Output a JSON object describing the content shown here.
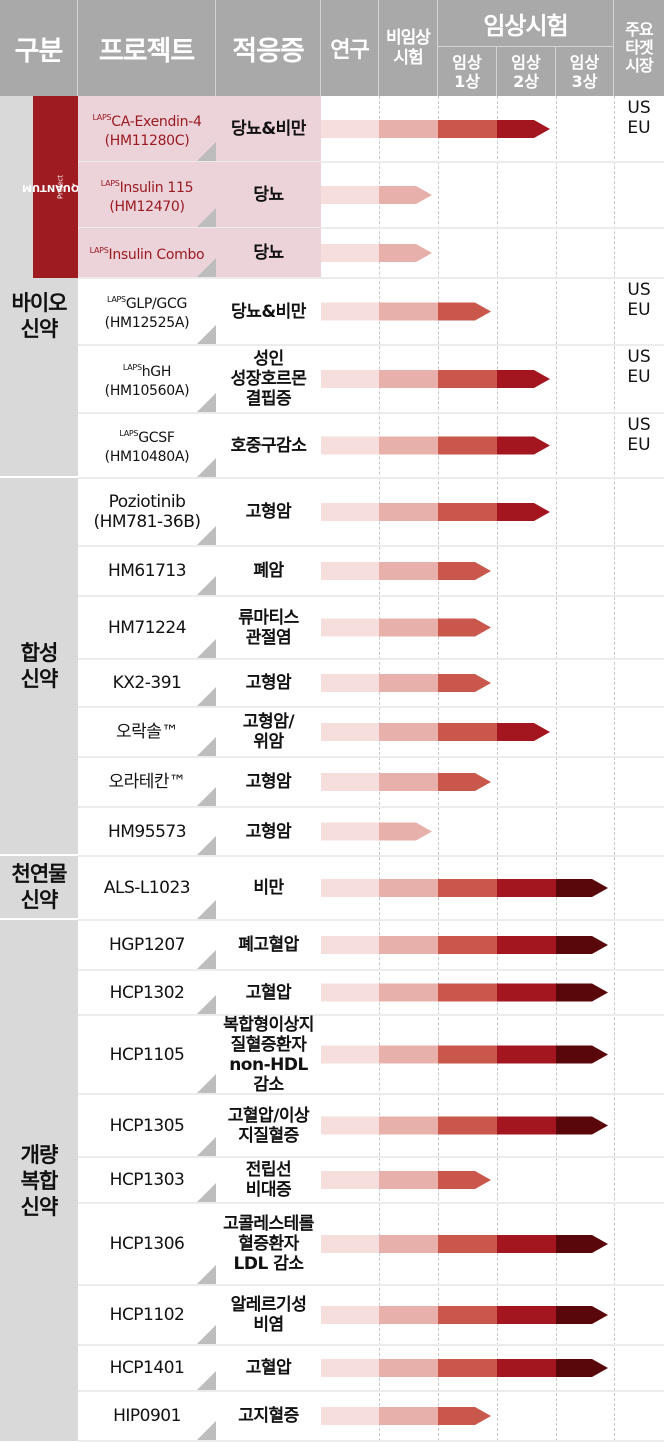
{
  "header": {
    "category": "구분",
    "project": "프로젝트",
    "indication": "적응증",
    "research": "연구",
    "preclinical": [
      "비임상",
      "시험"
    ],
    "clinical": "임상시험",
    "phase1": [
      "임상",
      "1상"
    ],
    "phase2": [
      "임상",
      "2상"
    ],
    "phase3": [
      "임상",
      "3상"
    ],
    "market": [
      "주요",
      "타겟",
      "시장"
    ]
  },
  "quantum": {
    "title": "QUANTUM",
    "subtitle": "Project"
  },
  "categories": [
    {
      "name": [
        "바이오",
        "신약"
      ]
    },
    {
      "name": [
        "합성",
        "신약"
      ]
    },
    {
      "name": [
        "천연물",
        "신약"
      ]
    },
    {
      "name": [
        "개량",
        "복합",
        "신약"
      ]
    }
  ],
  "colors": {
    "research": "#f6dedd",
    "preclinical": "#e7b0ab",
    "phase1": "#c9574b",
    "phase2": "#a3151f",
    "phase3": "#5a070c",
    "quantum_bg": "#9e1b22",
    "quantum_row_bg": "#ecd3da",
    "header_bg": "#a9a9a9"
  },
  "chart_data": {
    "type": "bar",
    "stages": [
      "연구",
      "비임상시험",
      "임상 1상",
      "임상 2상",
      "임상 3상"
    ],
    "projects": [
      {
        "sup": "LAPS",
        "name": "CA-Exendin-4",
        "code": "(HM11280C)",
        "indication": [
          "당뇨&비만"
        ],
        "stage": 4,
        "market": [
          "US",
          "EU"
        ],
        "category": "바이오 신약",
        "quantum": true
      },
      {
        "sup": "LAPS",
        "name": "Insulin 115",
        "code": "(HM12470)",
        "indication": [
          "당뇨"
        ],
        "stage": 2,
        "market": [],
        "category": "바이오 신약",
        "quantum": true
      },
      {
        "sup": "LAPS",
        "name": "Insulin Combo",
        "code": "",
        "indication": [
          "당뇨"
        ],
        "stage": 2,
        "market": [],
        "category": "바이오 신약",
        "quantum": true
      },
      {
        "sup": "LAPS",
        "name": "GLP/GCG",
        "code": "(HM12525A)",
        "indication": [
          "당뇨&비만"
        ],
        "stage": 3,
        "market": [
          "US",
          "EU"
        ],
        "category": "바이오 신약"
      },
      {
        "sup": "LAPS",
        "name": "hGH",
        "code": "(HM10560A)",
        "indication": [
          "성인",
          "성장호르몬",
          "결핍증"
        ],
        "stage": 4,
        "market": [
          "US",
          "EU"
        ],
        "category": "바이오 신약"
      },
      {
        "sup": "LAPS",
        "name": "GCSF",
        "code": "(HM10480A)",
        "indication": [
          "호중구감소"
        ],
        "stage": 4,
        "market": [
          "US",
          "EU"
        ],
        "category": "바이오 신약"
      },
      {
        "sup": "",
        "name": "Poziotinib",
        "code": "(HM781-36B)",
        "indication": [
          "고형암"
        ],
        "stage": 4,
        "market": [],
        "category": "합성 신약"
      },
      {
        "sup": "",
        "name": "HM61713",
        "code": "",
        "indication": [
          "폐암"
        ],
        "stage": 3,
        "market": [],
        "category": "합성 신약"
      },
      {
        "sup": "",
        "name": "HM71224",
        "code": "",
        "indication": [
          "류마티스",
          "관절염"
        ],
        "stage": 3,
        "market": [],
        "category": "합성 신약"
      },
      {
        "sup": "",
        "name": "KX2-391",
        "code": "",
        "indication": [
          "고형암"
        ],
        "stage": 3,
        "market": [],
        "category": "합성 신약"
      },
      {
        "sup": "",
        "name": "오락솔™",
        "code": "",
        "indication": [
          "고형암/",
          "위암"
        ],
        "stage": 4,
        "market": [],
        "category": "합성 신약"
      },
      {
        "sup": "",
        "name": "오라테칸™",
        "code": "",
        "indication": [
          "고형암"
        ],
        "stage": 3,
        "market": [],
        "category": "합성 신약"
      },
      {
        "sup": "",
        "name": "HM95573",
        "code": "",
        "indication": [
          "고형암"
        ],
        "stage": 2,
        "market": [],
        "category": "합성 신약"
      },
      {
        "sup": "",
        "name": "ALS-L1023",
        "code": "",
        "indication": [
          "비만"
        ],
        "stage": 5,
        "market": [],
        "category": "천연물 신약"
      },
      {
        "sup": "",
        "name": "HGP1207",
        "code": "",
        "indication": [
          "폐고혈압"
        ],
        "stage": 5,
        "market": [],
        "category": "개량 복합 신약"
      },
      {
        "sup": "",
        "name": "HCP1302",
        "code": "",
        "indication": [
          "고혈압"
        ],
        "stage": 5,
        "market": [],
        "category": "개량 복합 신약"
      },
      {
        "sup": "",
        "name": "HCP1105",
        "code": "",
        "indication": [
          "복합형이상지",
          "질혈증환자",
          "non-HDL",
          "감소"
        ],
        "stage": 5,
        "market": [],
        "category": "개량 복합 신약"
      },
      {
        "sup": "",
        "name": "HCP1305",
        "code": "",
        "indication": [
          "고혈압/이상",
          "지질혈증"
        ],
        "stage": 5,
        "market": [],
        "category": "개량 복합 신약"
      },
      {
        "sup": "",
        "name": "HCP1303",
        "code": "",
        "indication": [
          "전립선",
          "비대증"
        ],
        "stage": 3,
        "market": [],
        "category": "개량 복합 신약"
      },
      {
        "sup": "",
        "name": "HCP1306",
        "code": "",
        "indication": [
          "고콜레스테롤",
          "혈증환자",
          "LDL 감소"
        ],
        "stage": 5,
        "market": [],
        "category": "개량 복합 신약"
      },
      {
        "sup": "",
        "name": "HCP1102",
        "code": "",
        "indication": [
          "알레르기성",
          "비염"
        ],
        "stage": 5,
        "market": [],
        "category": "개량 복합 신약"
      },
      {
        "sup": "",
        "name": "HCP1401",
        "code": "",
        "indication": [
          "고혈압"
        ],
        "stage": 5,
        "market": [],
        "category": "개량 복합 신약"
      },
      {
        "sup": "",
        "name": "HIP0901",
        "code": "",
        "indication": [
          "고지혈증"
        ],
        "stage": 3,
        "market": [],
        "category": "개량 복합 신약"
      }
    ]
  }
}
